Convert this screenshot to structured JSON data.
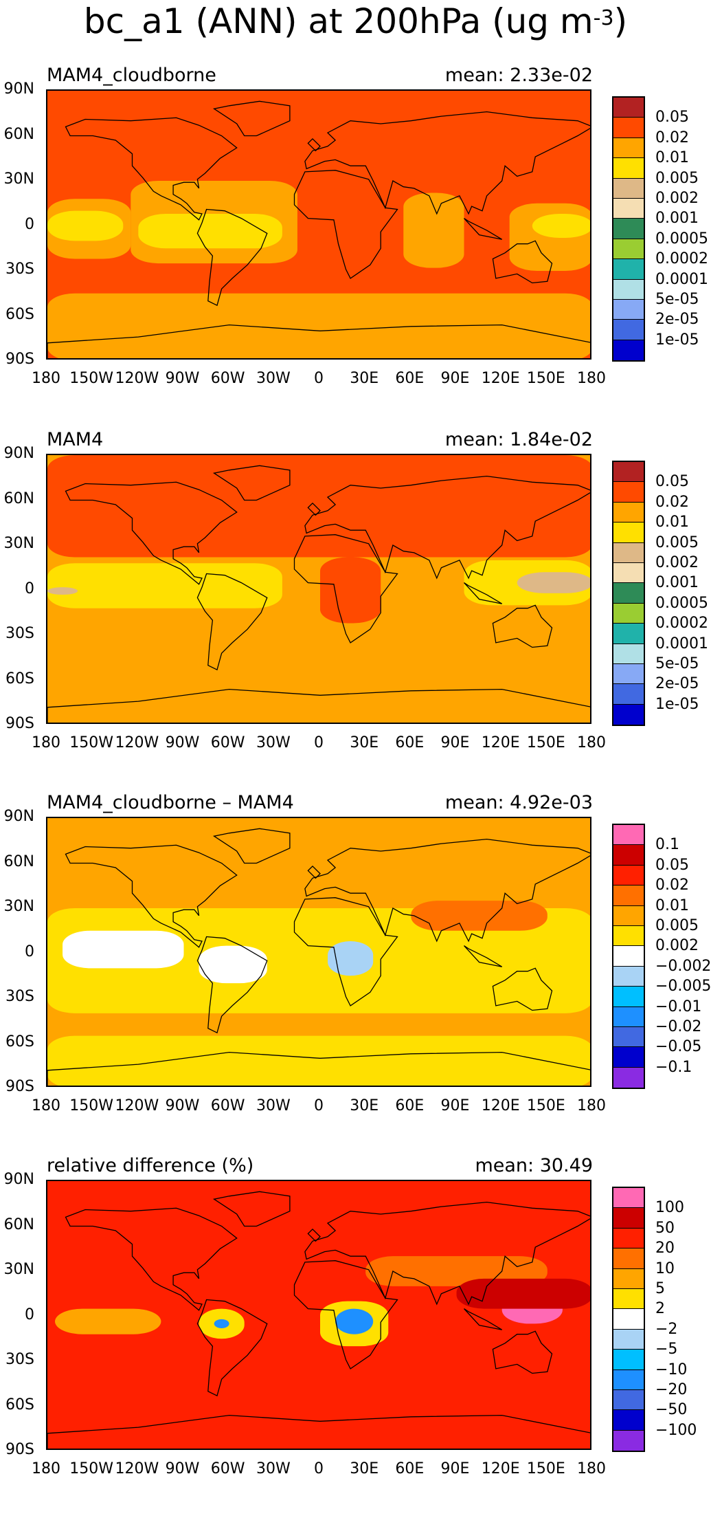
{
  "figure": {
    "title_main": "bc_a1 (ANN) at 200hPa (ug m",
    "title_exp": "-3",
    "title_end": ")"
  },
  "axes": {
    "y_ticks": [
      "90N",
      "60N",
      "30N",
      "0",
      "30S",
      "60S",
      "90S"
    ],
    "x_ticks": [
      "180",
      "150W",
      "120W",
      "90W",
      "60W",
      "30W",
      "0",
      "30E",
      "60E",
      "90E",
      "120E",
      "150E",
      "180"
    ]
  },
  "panels": [
    {
      "name": "MAM4_cloudborne",
      "mean": "mean: 2.33e-02",
      "background": "#ff4a00",
      "levels": [
        "0.05",
        "0.02",
        "0.01",
        "0.005",
        "0.002",
        "0.001",
        "0.0005",
        "0.0002",
        "0.0001",
        "5e-05",
        "2e-05",
        "1e-05"
      ],
      "colors": [
        "#b22222",
        "#ff4a00",
        "#ffa500",
        "#ffe000",
        "#deb887",
        "#f5deb3",
        "#2e8b57",
        "#9acd32",
        "#20b2aa",
        "#b0e0e6",
        "#87a9f5",
        "#4169e1",
        "#0000cd"
      ],
      "regions": [
        {
          "color": "#ffa500",
          "lat_n": 18,
          "lat_s": -22,
          "lon_w": -180,
          "lon_e": -125
        },
        {
          "color": "#ffa500",
          "lat_n": 30,
          "lat_s": -25,
          "lon_w": -125,
          "lon_e": -15
        },
        {
          "color": "#ffa500",
          "lat_n": 22,
          "lat_s": -28,
          "lon_w": 55,
          "lon_e": 95
        },
        {
          "color": "#ffa500",
          "lat_n": 15,
          "lat_s": -30,
          "lon_w": 125,
          "lon_e": 180
        },
        {
          "color": "#ffe000",
          "lat_n": 10,
          "lat_s": -10,
          "lon_w": -180,
          "lon_e": -130
        },
        {
          "color": "#ffe000",
          "lat_n": 8,
          "lat_s": -15,
          "lon_w": -120,
          "lon_e": -25
        },
        {
          "color": "#ffe000",
          "lat_n": 8,
          "lat_s": -8,
          "lon_w": 140,
          "lon_e": 180
        },
        {
          "color": "#ffa500",
          "lat_n": -45,
          "lat_s": -90,
          "lon_w": -180,
          "lon_e": 180
        }
      ]
    },
    {
      "name": "MAM4",
      "mean": "mean: 1.84e-02",
      "background": "#ffa500",
      "levels": [
        "0.05",
        "0.02",
        "0.01",
        "0.005",
        "0.002",
        "0.001",
        "0.0005",
        "0.0002",
        "0.0001",
        "5e-05",
        "2e-05",
        "1e-05"
      ],
      "colors": [
        "#b22222",
        "#ff4a00",
        "#ffa500",
        "#ffe000",
        "#deb887",
        "#f5deb3",
        "#2e8b57",
        "#9acd32",
        "#20b2aa",
        "#b0e0e6",
        "#87a9f5",
        "#4169e1",
        "#0000cd"
      ],
      "regions": [
        {
          "color": "#ff4a00",
          "lat_n": 90,
          "lat_s": 22,
          "lon_w": -180,
          "lon_e": 180
        },
        {
          "color": "#ff4a00",
          "lat_n": 22,
          "lat_s": -22,
          "lon_w": 0,
          "lon_e": 40
        },
        {
          "color": "#ffe000",
          "lat_n": 18,
          "lat_s": -12,
          "lon_w": -180,
          "lon_e": -25
        },
        {
          "color": "#ffe000",
          "lat_n": 20,
          "lat_s": -10,
          "lon_w": 95,
          "lon_e": 180
        },
        {
          "color": "#deb887",
          "lat_n": 12,
          "lat_s": -2,
          "lon_w": 130,
          "lon_e": 180
        },
        {
          "color": "#deb887",
          "lat_n": 2,
          "lat_s": -3,
          "lon_w": -180,
          "lon_e": -160
        }
      ]
    },
    {
      "name": "MAM4_cloudborne – MAM4",
      "mean": "mean: 4.92e-03",
      "background": "#ffa500",
      "levels": [
        "0.1",
        "0.05",
        "0.02",
        "0.01",
        "0.005",
        "0.002",
        "−0.002",
        "−0.005",
        "−0.01",
        "−0.02",
        "−0.05",
        "−0.1"
      ],
      "colors": [
        "#ff69b4",
        "#cc0000",
        "#ff2000",
        "#ff7000",
        "#ffa500",
        "#ffe000",
        "#ffffff",
        "#a9d3f5",
        "#00bfff",
        "#1e90ff",
        "#4169e1",
        "#0000cd",
        "#8a2be2"
      ],
      "regions": [
        {
          "color": "#ffe000",
          "lat_n": 30,
          "lat_s": -40,
          "lon_w": -180,
          "lon_e": 180
        },
        {
          "color": "#ffffff",
          "lat_n": 15,
          "lat_s": -10,
          "lon_w": -170,
          "lon_e": -90
        },
        {
          "color": "#ffffff",
          "lat_n": 5,
          "lat_s": -20,
          "lon_w": -80,
          "lon_e": -35
        },
        {
          "color": "#a9d3f5",
          "lat_n": 8,
          "lat_s": -15,
          "lon_w": 5,
          "lon_e": 35
        },
        {
          "color": "#ffe000",
          "lat_n": -55,
          "lat_s": -90,
          "lon_w": -180,
          "lon_e": 180
        },
        {
          "color": "#ff7000",
          "lat_n": 35,
          "lat_s": 15,
          "lon_w": 60,
          "lon_e": 150
        }
      ]
    },
    {
      "name": "relative difference (%)",
      "mean": "mean: 30.49",
      "background": "#ff2000",
      "levels": [
        "100",
        "50",
        "20",
        "10",
        "5",
        "2",
        "−2",
        "−5",
        "−10",
        "−20",
        "−50",
        "−100"
      ],
      "colors": [
        "#ff69b4",
        "#cc0000",
        "#ff2000",
        "#ff7000",
        "#ffa500",
        "#ffe000",
        "#ffffff",
        "#a9d3f5",
        "#00bfff",
        "#1e90ff",
        "#4169e1",
        "#0000cd",
        "#8a2be2"
      ],
      "regions": [
        {
          "color": "#ff7000",
          "lat_n": 40,
          "lat_s": 20,
          "lon_w": 30,
          "lon_e": 150
        },
        {
          "color": "#ffa500",
          "lat_n": 5,
          "lat_s": -12,
          "lon_w": -175,
          "lon_e": -105
        },
        {
          "color": "#ffe000",
          "lat_n": 10,
          "lat_s": -20,
          "lon_w": 0,
          "lon_e": 45
        },
        {
          "color": "#ffe000",
          "lat_n": 5,
          "lat_s": -15,
          "lon_w": -80,
          "lon_e": -50
        },
        {
          "color": "#1e90ff",
          "lat_n": 5,
          "lat_s": -12,
          "lon_w": 10,
          "lon_e": 35
        },
        {
          "color": "#1e90ff",
          "lat_n": -2,
          "lat_s": -8,
          "lon_w": -70,
          "lon_e": -60
        },
        {
          "color": "#ff69b4",
          "lat_n": 18,
          "lat_s": -5,
          "lon_w": 120,
          "lon_e": 160
        },
        {
          "color": "#cc0000",
          "lat_n": 25,
          "lat_s": 5,
          "lon_w": 90,
          "lon_e": 180
        }
      ]
    }
  ]
}
